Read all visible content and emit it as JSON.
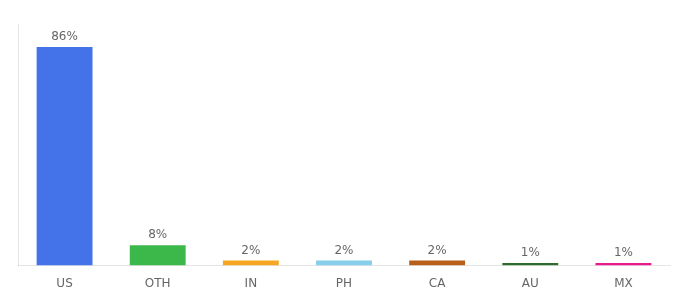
{
  "chart_data": {
    "type": "bar",
    "categories": [
      "US",
      "OTH",
      "IN",
      "PH",
      "CA",
      "AU",
      "MX"
    ],
    "values": [
      86,
      8,
      2,
      2,
      2,
      1,
      1
    ],
    "value_labels": [
      "86%",
      "8%",
      "2%",
      "2%",
      "2%",
      "1%",
      "1%"
    ],
    "colors": [
      "#4472e8",
      "#3cb84a",
      "#f5a623",
      "#87ceeb",
      "#b8601a",
      "#2e6b2e",
      "#e8198c"
    ],
    "ylim": [
      0,
      95
    ],
    "grid": false,
    "data_labels": true,
    "tick_labels": "x"
  }
}
